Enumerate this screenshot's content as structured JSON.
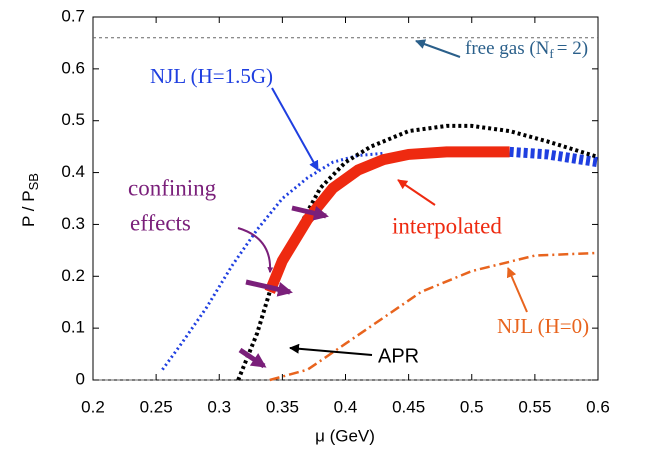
{
  "chart_data": {
    "type": "line",
    "xlabel": {
      "main": "μ (GeV)"
    },
    "ylabel": {
      "main": "P / P",
      "sub": "SB"
    },
    "xlim": [
      0.2,
      0.6
    ],
    "ylim": [
      0,
      0.7
    ],
    "xticks": [
      0.2,
      0.25,
      0.3,
      0.35,
      0.4,
      0.45,
      0.5,
      0.55,
      0.6
    ],
    "yticks": [
      0,
      0.1,
      0.2,
      0.3,
      0.4,
      0.5,
      0.6,
      0.7
    ],
    "reference_line": 0.66,
    "series": [
      {
        "name": "NJL (H=1.5G)",
        "color": "#1f3fe0",
        "style": "dotted",
        "x": [
          0.255,
          0.27,
          0.29,
          0.31,
          0.33,
          0.35,
          0.37,
          0.39,
          0.41,
          0.43
        ],
        "values": [
          0.02,
          0.07,
          0.14,
          0.22,
          0.29,
          0.35,
          0.39,
          0.42,
          0.433,
          0.437
        ]
      },
      {
        "color": "#1f3fe0",
        "style": "thick-dashed",
        "x": [
          0.53,
          0.56,
          0.6
        ],
        "values": [
          0.44,
          0.435,
          0.42
        ]
      },
      {
        "name": "APR",
        "color": "#000000",
        "style": "dotted",
        "x": [
          0.315,
          0.32,
          0.33,
          0.34,
          0.36,
          0.38,
          0.4,
          0.42,
          0.45,
          0.48,
          0.5,
          0.53,
          0.56,
          0.6
        ],
        "values": [
          0,
          0.03,
          0.09,
          0.17,
          0.28,
          0.37,
          0.42,
          0.45,
          0.48,
          0.49,
          0.49,
          0.48,
          0.46,
          0.43
        ]
      },
      {
        "name": "interpolated",
        "color": "#ee2a10",
        "style": "thick",
        "x": [
          0.34,
          0.35,
          0.37,
          0.39,
          0.41,
          0.43,
          0.45,
          0.48,
          0.53
        ],
        "values": [
          0.17,
          0.23,
          0.31,
          0.37,
          0.405,
          0.425,
          0.435,
          0.44,
          0.44
        ]
      },
      {
        "name": "NJL (H=0)",
        "color": "#e8641e",
        "style": "dashdot",
        "x": [
          0.34,
          0.37,
          0.4,
          0.43,
          0.46,
          0.5,
          0.55,
          0.6
        ],
        "values": [
          0,
          0.02,
          0.07,
          0.12,
          0.17,
          0.21,
          0.24,
          0.245
        ]
      }
    ],
    "annotations": {
      "free_gas": {
        "main": "free gas (N",
        "sub": "f",
        "tail": "= 2)"
      },
      "confining": [
        "confining",
        "effects"
      ]
    }
  }
}
